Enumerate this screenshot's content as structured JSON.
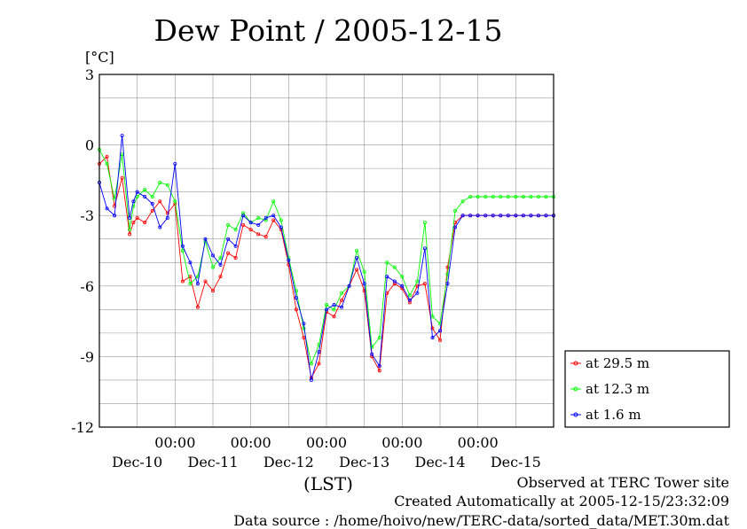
{
  "chart_data": {
    "type": "line",
    "title": "Dew Point / 2005-12-15",
    "ylabel": "[°C]",
    "xlabel": "(LST)",
    "ylim": [
      -12,
      3
    ],
    "yticks": [
      3,
      0,
      -3,
      -6,
      -9,
      -12
    ],
    "ytick_labels": [
      "3",
      "0",
      "-3",
      "-6",
      "-9",
      "-12"
    ],
    "xlim": [
      0,
      6
    ],
    "xticks": [
      1,
      2,
      3,
      4,
      5
    ],
    "xtick_time_labels": [
      "00:00",
      "00:00",
      "00:00",
      "00:00",
      "00:00"
    ],
    "xtick_day_labels": [
      "Dec-10",
      "Dec-11",
      "Dec-12",
      "Dec-13",
      "Dec-14",
      "Dec-15"
    ],
    "grid": true,
    "legend_position": "right",
    "series": [
      {
        "name": "at 29.5 m",
        "color": "#ff0000",
        "x": [
          0,
          0.1,
          0.2,
          0.3,
          0.4,
          0.45,
          0.5,
          0.6,
          0.7,
          0.8,
          0.9,
          1.0,
          1.1,
          1.2,
          1.3,
          1.4,
          1.5,
          1.6,
          1.7,
          1.8,
          1.9,
          2.0,
          2.1,
          2.2,
          2.3,
          2.4,
          2.5,
          2.6,
          2.7,
          2.8,
          2.9,
          3.0,
          3.1,
          3.2,
          3.3,
          3.4,
          3.5,
          3.6,
          3.7,
          3.8,
          3.9,
          4.0,
          4.1,
          4.2,
          4.3,
          4.4,
          4.5,
          4.6,
          4.7,
          4.8,
          4.9,
          5.0,
          5.1,
          5.2,
          5.3,
          5.4,
          5.5,
          5.6,
          5.7,
          5.8,
          5.9,
          6.0
        ],
        "y": [
          -0.8,
          -0.5,
          -2.6,
          -1.4,
          -3.8,
          -3.3,
          -3.1,
          -3.3,
          -2.8,
          -2.4,
          -2.9,
          -2.5,
          -5.8,
          -5.6,
          -6.9,
          -5.8,
          -6.2,
          -5.6,
          -4.6,
          -4.8,
          -3.4,
          -3.6,
          -3.8,
          -3.9,
          -3.2,
          -3.6,
          -5.1,
          -7.0,
          -8.2,
          -9.9,
          -9.3,
          -7.1,
          -7.3,
          -6.6,
          -6.0,
          -5.3,
          -6.2,
          -9.0,
          -9.6,
          -6.3,
          -5.9,
          -6.1,
          -6.7,
          -6.0,
          -5.9,
          -7.8,
          -8.3,
          -5.2,
          -3.3,
          -3.0,
          -3.0,
          -3.0,
          -3.0,
          -3.0,
          -3.0,
          -3.0,
          -3.0,
          -3.0,
          -3.0,
          -3.0,
          -3.0,
          -3.0
        ]
      },
      {
        "name": "at 12.3 m",
        "color": "#00ff00",
        "x": [
          0,
          0.1,
          0.2,
          0.3,
          0.4,
          0.45,
          0.5,
          0.6,
          0.7,
          0.8,
          0.9,
          1.0,
          1.1,
          1.2,
          1.3,
          1.4,
          1.5,
          1.6,
          1.7,
          1.8,
          1.9,
          2.0,
          2.1,
          2.2,
          2.3,
          2.4,
          2.5,
          2.6,
          2.7,
          2.8,
          2.9,
          3.0,
          3.1,
          3.2,
          3.3,
          3.4,
          3.5,
          3.6,
          3.7,
          3.8,
          3.9,
          4.0,
          4.1,
          4.2,
          4.3,
          4.4,
          4.5,
          4.6,
          4.7,
          4.8,
          4.9,
          5.0,
          5.1,
          5.2,
          5.3,
          5.4,
          5.5,
          5.6,
          5.7,
          5.8,
          5.9,
          6.0
        ],
        "y": [
          -0.2,
          -0.8,
          -2.3,
          -0.4,
          -3.6,
          -2.6,
          -2.2,
          -1.9,
          -2.2,
          -1.6,
          -1.7,
          -2.4,
          -4.5,
          -5.9,
          -5.6,
          -4.1,
          -5.2,
          -4.8,
          -3.4,
          -3.6,
          -2.9,
          -3.3,
          -3.1,
          -3.2,
          -2.4,
          -3.2,
          -4.8,
          -6.2,
          -7.8,
          -9.3,
          -8.5,
          -6.8,
          -7.0,
          -6.3,
          -6.0,
          -4.5,
          -5.4,
          -8.6,
          -8.2,
          -5.0,
          -5.2,
          -5.6,
          -6.4,
          -5.8,
          -3.3,
          -7.3,
          -7.6,
          -5.5,
          -2.8,
          -2.4,
          -2.2,
          -2.2,
          -2.2,
          -2.2,
          -2.2,
          -2.2,
          -2.2,
          -2.2,
          -2.2,
          -2.2,
          -2.2,
          -2.2
        ]
      },
      {
        "name": "at 1.6 m",
        "color": "#0000ff",
        "x": [
          0,
          0.1,
          0.2,
          0.3,
          0.4,
          0.45,
          0.5,
          0.6,
          0.7,
          0.8,
          0.9,
          1.0,
          1.1,
          1.2,
          1.3,
          1.4,
          1.5,
          1.6,
          1.7,
          1.8,
          1.9,
          2.0,
          2.1,
          2.2,
          2.3,
          2.4,
          2.5,
          2.6,
          2.7,
          2.8,
          2.9,
          3.0,
          3.1,
          3.2,
          3.3,
          3.4,
          3.5,
          3.6,
          3.7,
          3.8,
          3.9,
          4.0,
          4.1,
          4.2,
          4.3,
          4.4,
          4.5,
          4.6,
          4.7,
          4.8,
          4.9,
          5.0,
          5.1,
          5.2,
          5.3,
          5.4,
          5.5,
          5.6,
          5.7,
          5.8,
          5.9,
          6.0
        ],
        "y": [
          -1.6,
          -2.7,
          -3.0,
          0.4,
          -3.1,
          -2.4,
          -2.0,
          -2.2,
          -2.5,
          -3.5,
          -3.1,
          -0.8,
          -4.3,
          -5.0,
          -5.9,
          -4.0,
          -4.7,
          -5.1,
          -4.0,
          -4.3,
          -3.0,
          -3.3,
          -3.4,
          -3.1,
          -3.0,
          -3.5,
          -4.9,
          -6.5,
          -7.6,
          -10.0,
          -8.8,
          -7.0,
          -6.8,
          -6.9,
          -6.0,
          -4.8,
          -5.9,
          -8.9,
          -9.4,
          -5.6,
          -5.8,
          -6.0,
          -6.6,
          -6.3,
          -4.4,
          -8.2,
          -7.9,
          -5.9,
          -3.5,
          -3.0,
          -3.0,
          -3.0,
          -3.0,
          -3.0,
          -3.0,
          -3.0,
          -3.0,
          -3.0,
          -3.0,
          -3.0,
          -3.0,
          -3.0
        ]
      }
    ]
  },
  "footer": {
    "observed": "Observed at TERC Tower site",
    "created": "Created Automatically at 2005-12-15/23:32:09",
    "source": "Data source : /home/hoivo/new/TERC-data/sorted_data/MET.30m.dat"
  }
}
